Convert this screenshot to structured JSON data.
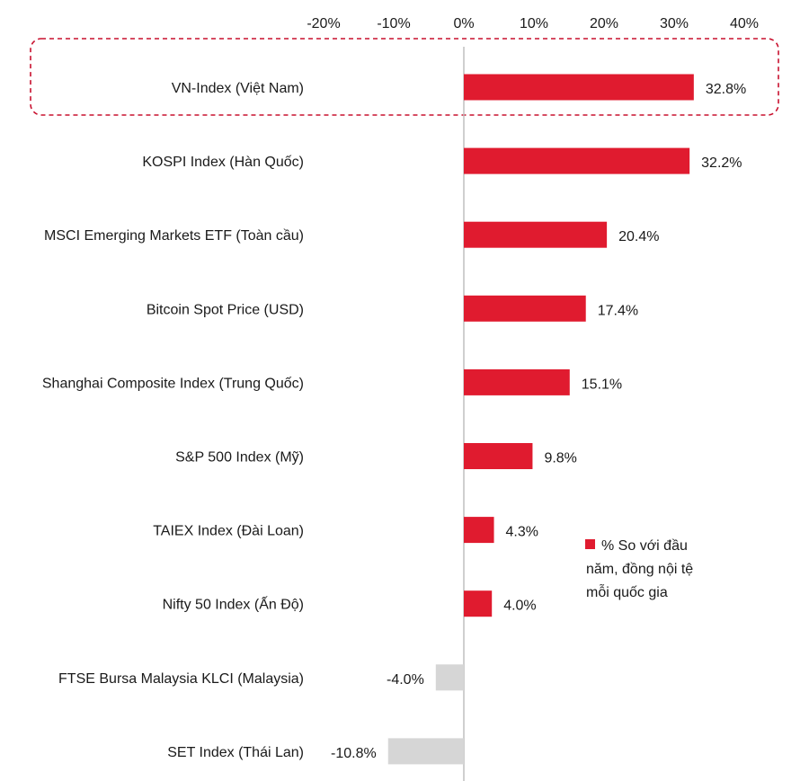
{
  "chart_data": {
    "type": "bar",
    "orientation": "horizontal",
    "categories": [
      "VN-Index (Việt Nam)",
      "KOSPI Index (Hàn Quốc)",
      "MSCI Emerging Markets ETF (Toàn cầu)",
      "Bitcoin Spot Price (USD)",
      "Shanghai Composite Index (Trung Quốc)",
      "S&P 500 Index (Mỹ)",
      "TAIEX Index (Đài Loan)",
      "Nifty 50 Index (Ấn Độ)",
      "FTSE Bursa Malaysia KLCI (Malaysia)",
      "SET Index (Thái Lan)"
    ],
    "series": [
      {
        "name": "% So với đầu năm, đồng nội tệ mỗi quốc gia",
        "values": [
          32.8,
          32.2,
          20.4,
          17.4,
          15.1,
          9.8,
          4.3,
          4.0,
          -4.0,
          -10.8
        ]
      }
    ],
    "value_labels": [
      "32.8%",
      "32.2%",
      "20.4%",
      "17.4%",
      "15.1%",
      "9.8%",
      "4.3%",
      "4.0%",
      "-4.0%",
      "-10.8%"
    ],
    "x_ticks": [
      -20,
      -10,
      0,
      10,
      20,
      30,
      40
    ],
    "x_tick_labels": [
      "-20%",
      "-10%",
      "0%",
      "10%",
      "20%",
      "30%",
      "40%"
    ],
    "xlim": [
      -20,
      40
    ],
    "axis_position": "top",
    "grid": false,
    "legend": {
      "position": "right",
      "lines": [
        "% So với đầu",
        "năm, đồng nội tệ",
        "mỗi quốc gia"
      ]
    },
    "highlight_category": "VN-Index (Việt Nam)",
    "colors": {
      "positive": "#e01b2f",
      "negative": "#d6d6d6",
      "highlight_border": "#c8102e",
      "axis": "#bfbfbf"
    }
  }
}
